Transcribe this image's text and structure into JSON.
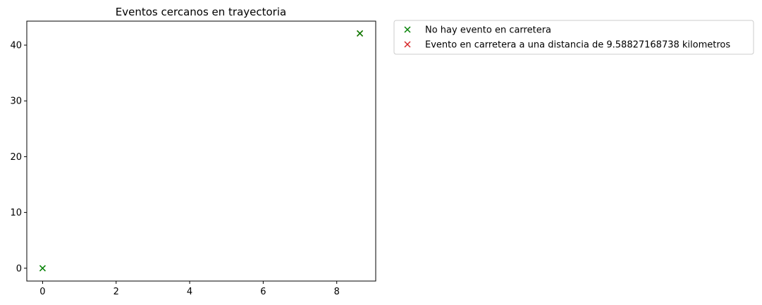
{
  "chart_data": {
    "type": "scatter",
    "title": "Eventos cercanos en trayectoria",
    "xlabel": "",
    "ylabel": "",
    "xlim": [
      -0.43,
      9.06
    ],
    "ylim": [
      -2.3,
      44.3
    ],
    "x_ticks": [
      0,
      2,
      4,
      6,
      8
    ],
    "y_ticks": [
      0,
      10,
      20,
      30,
      40
    ],
    "grid": false,
    "legend_position": "outside-upper-right",
    "series": [
      {
        "name": "No hay evento en carretera",
        "color": "#008000",
        "marker": "x",
        "points": [
          [
            0,
            0
          ],
          [
            8.63,
            42.1
          ]
        ]
      },
      {
        "name": "Evento en carretera a una distancia de 9.58827168738 kilometros",
        "color": "#d62728",
        "marker": "x",
        "points": [
          [
            8.63,
            42.1
          ]
        ]
      }
    ]
  }
}
